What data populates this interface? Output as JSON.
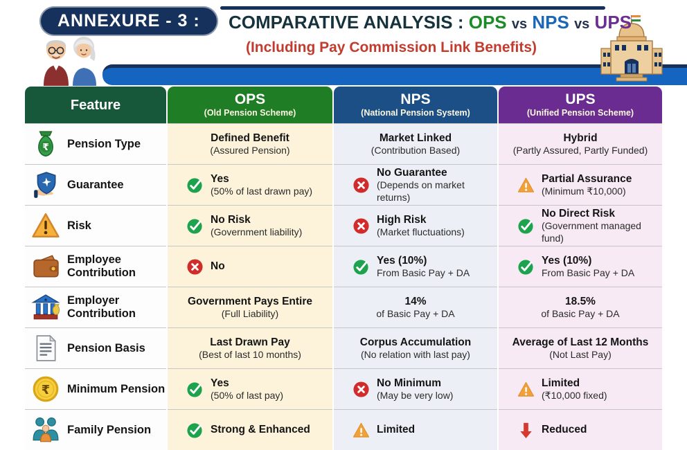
{
  "header": {
    "annexure_label": "ANNEXURE - 3 :",
    "title_prefix": "COMPARATIVE ANALYSIS :",
    "title_ops": "OPS",
    "title_vs1": "vs",
    "title_nps": "NPS",
    "title_vs2": "vs",
    "title_ups": "UPS",
    "subtitle": "(Including Pay Commission Link Benefits)"
  },
  "table": {
    "columns": [
      {
        "key": "feature",
        "label": "Feature",
        "sublabel": ""
      },
      {
        "key": "ops",
        "label": "OPS",
        "sublabel": "(Old Pension Scheme)"
      },
      {
        "key": "nps",
        "label": "NPS",
        "sublabel": "(National Pension System)"
      },
      {
        "key": "ups",
        "label": "UPS",
        "sublabel": "(Unified Pension Scheme)"
      }
    ],
    "rows": [
      {
        "feature": "Pension Type",
        "icon": "money-bag-icon",
        "ops": {
          "status": "none",
          "title": "Defined Benefit",
          "sub": "(Assured Pension)"
        },
        "nps": {
          "status": "none",
          "title": "Market Linked",
          "sub": "(Contribution Based)"
        },
        "ups": {
          "status": "none",
          "title": "Hybrid",
          "sub": "(Partly Assured, Partly Funded)"
        }
      },
      {
        "feature": "Guarantee",
        "icon": "shield-hand-icon",
        "ops": {
          "status": "check",
          "title": "Yes",
          "sub": "(50% of last drawn pay)"
        },
        "nps": {
          "status": "cross",
          "title": "No Guarantee",
          "sub": "(Depends on market returns)"
        },
        "ups": {
          "status": "warning",
          "title": "Partial Assurance",
          "sub": "(Minimum ₹10,000)"
        }
      },
      {
        "feature": "Risk",
        "icon": "warning-triangle-icon",
        "ops": {
          "status": "check",
          "title": "No Risk",
          "sub": "(Government liability)"
        },
        "nps": {
          "status": "cross",
          "title": "High Risk",
          "sub": "(Market fluctuations)"
        },
        "ups": {
          "status": "check",
          "title": "No Direct Risk",
          "sub": "(Government managed fund)"
        }
      },
      {
        "feature": "Employee Contribution",
        "icon": "wallet-icon",
        "ops": {
          "status": "cross",
          "title": "No",
          "sub": ""
        },
        "nps": {
          "status": "check",
          "title": "Yes (10%)",
          "sub": "From Basic Pay + DA"
        },
        "ups": {
          "status": "check",
          "title": "Yes (10%)",
          "sub": "From Basic Pay + DA"
        }
      },
      {
        "feature": "Employer Contribution",
        "icon": "bank-icon",
        "ops": {
          "status": "none",
          "title": "Government Pays Entire",
          "sub": "(Full Liability)"
        },
        "nps": {
          "status": "none",
          "title": "14%",
          "sub": "of Basic Pay + DA"
        },
        "ups": {
          "status": "none",
          "title": "18.5%",
          "sub": "of Basic Pay + DA"
        }
      },
      {
        "feature": "Pension Basis",
        "icon": "document-icon",
        "ops": {
          "status": "none",
          "title": "Last Drawn Pay",
          "sub": "(Best of last 10 months)"
        },
        "nps": {
          "status": "none",
          "title": "Corpus Accumulation",
          "sub": "(No relation with last pay)"
        },
        "ups": {
          "status": "none",
          "title": "Average of Last 12 Months",
          "sub": "(Not Last Pay)"
        }
      },
      {
        "feature": "Minimum Pension",
        "icon": "rupee-coin-icon",
        "ops": {
          "status": "check",
          "title": "Yes",
          "sub": "(50% of last pay)"
        },
        "nps": {
          "status": "cross",
          "title": "No Minimum",
          "sub": "(May be very low)"
        },
        "ups": {
          "status": "warning",
          "title": "Limited",
          "sub": "(₹10,000 fixed)"
        }
      },
      {
        "feature": "Family Pension",
        "icon": "family-icon",
        "ops": {
          "status": "check",
          "title": "Strong & Enhanced",
          "sub": ""
        },
        "nps": {
          "status": "warning",
          "title": "Limited",
          "sub": ""
        },
        "ups": {
          "status": "down",
          "title": "Reduced",
          "sub": ""
        }
      }
    ]
  },
  "colors": {
    "annexure_pill_bg": "#16325c",
    "feature_header_bg": "#17573a",
    "ops_header_bg": "#1f7d26",
    "nps_header_bg": "#1b4f86",
    "ups_header_bg": "#6a2c90",
    "feature_cell_bg": "#fdfdfd",
    "ops_cell_bg": "#fcf3da",
    "nps_cell_bg": "#ecf0f6",
    "ups_cell_bg": "#f7eaf4",
    "title_ops_color": "#1d8a28",
    "title_nps_color": "#1a66b8",
    "title_ups_color": "#6d2e93",
    "subtitle_color": "#c23b2e",
    "check_color": "#1da34e",
    "cross_color": "#d12c2c",
    "warning_color": "#f2a13a",
    "down_arrow_color": "#d63a2e",
    "swoosh_color": "#1464c0"
  }
}
